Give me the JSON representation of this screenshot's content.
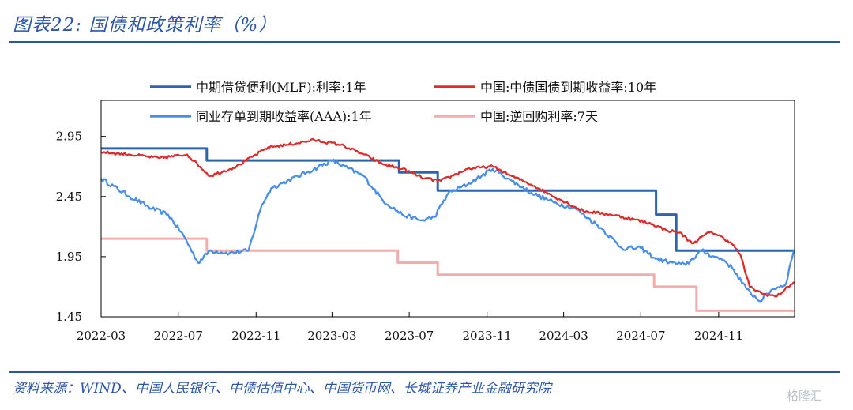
{
  "figure": {
    "title": "图表22:  国债和政策利率（%）",
    "source": "资料来源：WIND、中国人民银行、中债估值中心、中国货币网、长城证券产业金融研究院",
    "watermark": "格隆汇"
  },
  "chart_data": {
    "type": "line",
    "title": "",
    "xlabel": "",
    "ylabel": "",
    "ylim": [
      1.45,
      3.25
    ],
    "yticks": [
      "1.45",
      "1.95",
      "2.45",
      "2.95"
    ],
    "xticks": [
      "2022-03",
      "2022-07",
      "2022-11",
      "2023-03",
      "2023-07",
      "2023-11",
      "2024-03",
      "2024-07",
      "2024-11"
    ],
    "xrange": [
      "2022-03",
      "2025-03"
    ],
    "grid": false,
    "legend_position": "top",
    "series": [
      {
        "name": "中期借贷便利(MLF):利率:1年",
        "color": "#2e63ae",
        "step": true,
        "x": [
          "2022-03-01",
          "2022-08-15",
          "2023-06-15",
          "2023-08-15",
          "2024-07-25",
          "2024-08-26",
          "2025-02-28"
        ],
        "values": [
          2.85,
          2.75,
          2.65,
          2.5,
          2.3,
          2.0,
          2.0
        ]
      },
      {
        "name": "中国:中债国债到期收益率:10年",
        "color": "#e02b2b",
        "step": false,
        "x": [
          "2022-03-01",
          "2022-04-15",
          "2022-06-01",
          "2022-07-15",
          "2022-08-20",
          "2022-10-01",
          "2022-11-20",
          "2022-12-20",
          "2023-02-01",
          "2023-03-15",
          "2023-04-20",
          "2023-05-20",
          "2023-06-20",
          "2023-07-25",
          "2023-08-20",
          "2023-10-01",
          "2023-11-10",
          "2023-12-10",
          "2024-01-10",
          "2024-02-15",
          "2024-04-01",
          "2024-05-15",
          "2024-06-20",
          "2024-07-20",
          "2024-08-10",
          "2024-09-01",
          "2024-09-20",
          "2024-10-20",
          "2024-11-20",
          "2024-12-05",
          "2024-12-20",
          "2025-01-10",
          "2025-02-01",
          "2025-02-28"
        ],
        "values": [
          2.82,
          2.8,
          2.77,
          2.8,
          2.62,
          2.7,
          2.86,
          2.88,
          2.92,
          2.88,
          2.8,
          2.72,
          2.68,
          2.6,
          2.58,
          2.68,
          2.7,
          2.62,
          2.55,
          2.45,
          2.33,
          2.3,
          2.26,
          2.22,
          2.17,
          2.15,
          2.06,
          2.16,
          2.07,
          1.97,
          1.7,
          1.64,
          1.62,
          1.74
        ]
      },
      {
        "name": "同业存单到期收益率(AAA):1年",
        "color": "#4a8fe7",
        "step": false,
        "x": [
          "2022-03-01",
          "2022-04-15",
          "2022-05-20",
          "2022-06-15",
          "2022-07-10",
          "2022-08-01",
          "2022-08-20",
          "2022-09-20",
          "2022-10-20",
          "2022-11-10",
          "2022-11-25",
          "2022-12-20",
          "2023-01-20",
          "2023-03-01",
          "2023-04-20",
          "2023-05-20",
          "2023-06-20",
          "2023-07-20",
          "2023-08-10",
          "2023-09-01",
          "2023-10-01",
          "2023-11-10",
          "2023-12-10",
          "2024-01-10",
          "2024-02-15",
          "2024-03-20",
          "2024-05-01",
          "2024-06-01",
          "2024-07-01",
          "2024-07-25",
          "2024-08-20",
          "2024-09-10",
          "2024-10-05",
          "2024-10-25",
          "2024-11-10",
          "2024-11-25",
          "2024-12-15",
          "2025-01-05",
          "2025-01-25",
          "2025-02-15",
          "2025-02-28"
        ],
        "values": [
          2.6,
          2.45,
          2.35,
          2.3,
          2.12,
          1.9,
          2.0,
          1.98,
          2.0,
          2.38,
          2.52,
          2.58,
          2.65,
          2.75,
          2.62,
          2.42,
          2.3,
          2.25,
          2.28,
          2.48,
          2.55,
          2.68,
          2.58,
          2.48,
          2.4,
          2.35,
          2.18,
          2.02,
          2.02,
          1.93,
          1.9,
          1.88,
          2.0,
          1.95,
          1.92,
          1.84,
          1.68,
          1.58,
          1.68,
          1.72,
          2.01
        ]
      },
      {
        "name": "中国:逆回购利率:7天",
        "color": "#f2adad",
        "step": true,
        "x": [
          "2022-03-01",
          "2022-08-15",
          "2023-06-13",
          "2023-08-15",
          "2024-07-22",
          "2024-09-27",
          "2025-02-28"
        ],
        "values": [
          2.1,
          2.0,
          1.9,
          1.8,
          1.7,
          1.5,
          1.5
        ]
      }
    ]
  }
}
